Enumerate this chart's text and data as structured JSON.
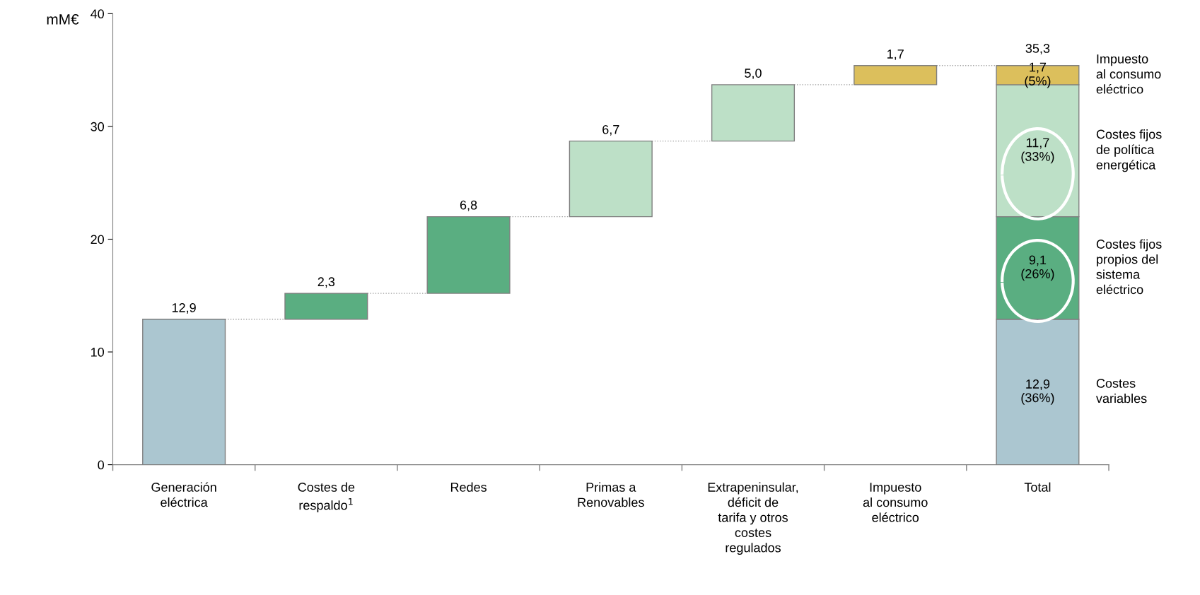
{
  "chart_data": {
    "type": "bar",
    "ylabel": "mM€",
    "categories": [
      "Generación\neléctrica",
      "Costes de\nrespaldo$^{1}$",
      "Redes",
      "Primas a\nRenovables",
      "Extrapeninsular,\ndéficit de\ntarifa y otros\ncostes\nregulados",
      "Impuesto\nal consumo\neléctrico",
      "Total"
    ],
    "series": [
      {
        "name": "Costes\nvariables",
        "color": "#abc6d0",
        "values": [
          12.9,
          null,
          null,
          null,
          null,
          null,
          12.9
        ],
        "base": [
          0,
          null,
          null,
          null,
          null,
          null,
          0
        ],
        "value_labels": [
          "12,9",
          null,
          null,
          null,
          null,
          null,
          "12,9\n(36%)"
        ]
      },
      {
        "name": "Costes fijos\npropios del\nsistema\neléctrico",
        "color": "#5aae81",
        "values": [
          null,
          2.3,
          6.8,
          null,
          null,
          null,
          9.1
        ],
        "base": [
          null,
          12.9,
          15.2,
          null,
          null,
          null,
          12.9
        ],
        "value_labels": [
          null,
          "2,3",
          "6,8",
          null,
          null,
          null,
          "9,1\n(26%)"
        ]
      },
      {
        "name": "Costes fijos\nde política\nenergética",
        "color": "#bde0c7",
        "values": [
          null,
          null,
          null,
          6.7,
          5.0,
          null,
          11.7
        ],
        "base": [
          null,
          null,
          null,
          22.0,
          28.7,
          null,
          22.0
        ],
        "value_labels": [
          null,
          null,
          null,
          "6,7",
          "5,0",
          null,
          "11,7\n(33%)"
        ]
      },
      {
        "name": "Impuesto\nal consumo\neléctrico",
        "color": "#dcbf5c",
        "values": [
          null,
          null,
          null,
          null,
          null,
          1.7,
          1.7
        ],
        "base": [
          null,
          null,
          null,
          null,
          null,
          33.7,
          33.7
        ],
        "value_labels": [
          null,
          null,
          null,
          null,
          null,
          "1,7",
          "1,7\n(5%)"
        ]
      }
    ],
    "totals": [
      null,
      null,
      null,
      null,
      null,
      null,
      "35,3"
    ],
    "ylim": [
      0,
      40
    ],
    "yticks": [
      0,
      10,
      20,
      30,
      40
    ],
    "grid": false,
    "legend": false
  }
}
